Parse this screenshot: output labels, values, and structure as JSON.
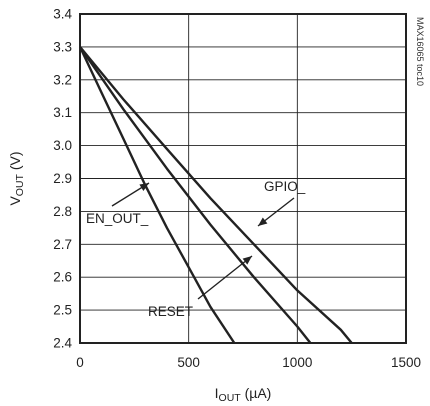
{
  "chart_data": {
    "type": "line",
    "title": "",
    "xlabel": {
      "main": "I",
      "sub": "OUT",
      "suffix": " (µA)"
    },
    "ylabel": {
      "main": "V",
      "sub": "OUT",
      "suffix": " (V)"
    },
    "xlim": [
      0,
      1500
    ],
    "ylim": [
      2.4,
      3.4
    ],
    "x_ticks": [
      0,
      500,
      1000,
      1500
    ],
    "x_tick_labels": [
      "0",
      "500",
      "1000",
      "1500"
    ],
    "y_ticks": [
      2.4,
      2.5,
      2.6,
      2.7,
      2.8,
      2.9,
      3.0,
      3.1,
      3.2,
      3.3,
      3.4
    ],
    "y_tick_labels": [
      "2.4",
      "2.5",
      "2.6",
      "2.7",
      "2.8",
      "2.9",
      "3.0",
      "3.1",
      "3.2",
      "3.3",
      "3.4"
    ],
    "grid": true,
    "legend": "none (direct annotations with arrows)",
    "series": [
      {
        "name": "EN_OUT_",
        "x": [
          0,
          100,
          200,
          300,
          400,
          500,
          600,
          710
        ],
        "y": [
          3.3,
          3.16,
          3.02,
          2.88,
          2.75,
          2.63,
          2.51,
          2.4
        ]
      },
      {
        "name": "RESET",
        "x": [
          0,
          200,
          400,
          600,
          800,
          1000,
          1060
        ],
        "y": [
          3.3,
          3.11,
          2.93,
          2.76,
          2.6,
          2.45,
          2.4
        ]
      },
      {
        "name": "GPIO_",
        "x": [
          0,
          200,
          400,
          600,
          800,
          1000,
          1200,
          1250
        ],
        "y": [
          3.3,
          3.14,
          2.99,
          2.84,
          2.7,
          2.56,
          2.44,
          2.4
        ]
      }
    ],
    "annotations": [
      {
        "text": "EN_OUT_",
        "arrow_to_series": "EN_OUT_"
      },
      {
        "text": "RESET",
        "arrow_to_series": "RESET"
      },
      {
        "text": "GPIO_",
        "arrow_to_series": "GPIO_"
      }
    ],
    "watermark": "MAX16065 toc10",
    "colors": {
      "line": "#222222",
      "grid": "#222222",
      "background": "#ffffff"
    }
  }
}
